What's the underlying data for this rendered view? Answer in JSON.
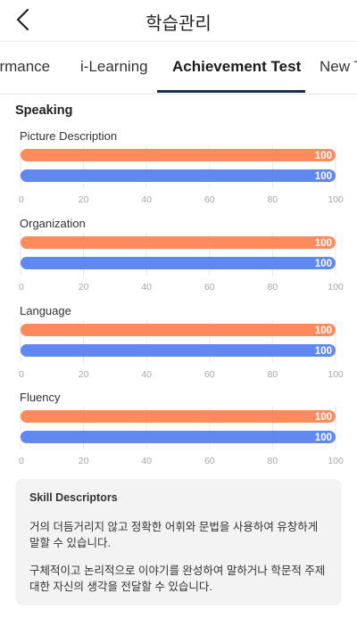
{
  "header": {
    "title": "학습관리",
    "back_icon": "chevron-left-icon"
  },
  "tabs": [
    {
      "label": "ormance",
      "active": false
    },
    {
      "label": "i-Learning",
      "active": false
    },
    {
      "label": "Achievement Test",
      "active": true
    },
    {
      "label": "New T",
      "active": false
    }
  ],
  "section": {
    "title": "Speaking"
  },
  "colors": {
    "series_a": "#ff8a5c",
    "series_b": "#5f88f0",
    "tab_accent": "#1b2d4a"
  },
  "chart_data": [
    {
      "type": "bar",
      "title": "Picture Description",
      "orientation": "horizontal",
      "series": [
        {
          "values": [
            100
          ]
        },
        {
          "values": [
            100
          ]
        }
      ],
      "xlim": [
        0,
        100
      ],
      "xticks": [
        "0",
        "20",
        "40",
        "60",
        "80",
        "100"
      ],
      "grid": true
    },
    {
      "type": "bar",
      "title": "Organization",
      "orientation": "horizontal",
      "series": [
        {
          "values": [
            100
          ]
        },
        {
          "values": [
            100
          ]
        }
      ],
      "xlim": [
        0,
        100
      ],
      "xticks": [
        "0",
        "20",
        "40",
        "60",
        "80",
        "100"
      ],
      "grid": true
    },
    {
      "type": "bar",
      "title": "Language",
      "orientation": "horizontal",
      "series": [
        {
          "values": [
            100
          ]
        },
        {
          "values": [
            100
          ]
        }
      ],
      "xlim": [
        0,
        100
      ],
      "xticks": [
        "0",
        "20",
        "40",
        "60",
        "80",
        "100"
      ],
      "grid": true
    },
    {
      "type": "bar",
      "title": "Fluency",
      "orientation": "horizontal",
      "series": [
        {
          "values": [
            100
          ]
        },
        {
          "values": [
            100
          ]
        }
      ],
      "xlim": [
        0,
        100
      ],
      "xticks": [
        "0",
        "20",
        "40",
        "60",
        "80",
        "100"
      ],
      "grid": true
    }
  ],
  "descriptors": {
    "title": "Skill Descriptors",
    "paragraphs": [
      "거의 더듬거리지 않고 정확한 어휘와 문법을 사용하여 유창하게 말할 수 있습니다.",
      "구체적이고 논리적으로 이야기를 완성하여 말하거나 학문적 주제 대한 자신의 생각을 전달할 수 있습니다."
    ]
  }
}
